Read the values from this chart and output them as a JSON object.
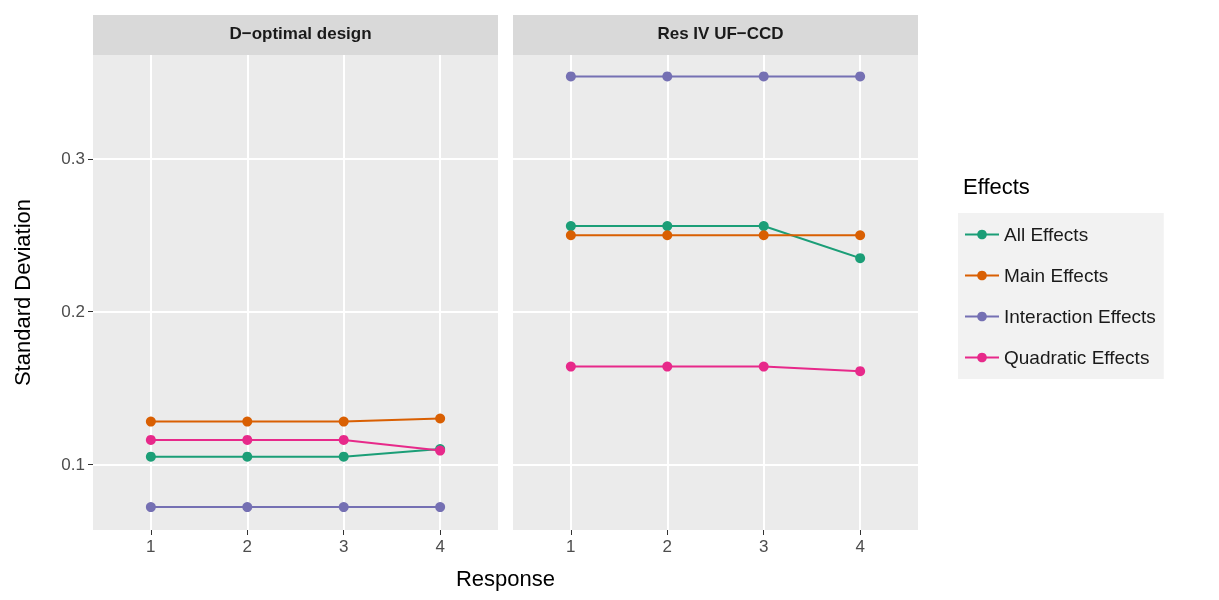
{
  "chart_data": [
    {
      "type": "line",
      "title": "D−optimal design",
      "xlabel": "Response",
      "ylabel": "Standard Deviation",
      "x": [
        1,
        2,
        3,
        4
      ],
      "xlim": [
        0.4,
        4.6
      ],
      "xticks": [
        1,
        2,
        3,
        4
      ],
      "ylim": [
        0.057,
        0.368
      ],
      "yticks": [
        0.1,
        0.2,
        0.3
      ],
      "grid": true,
      "marker": "circle",
      "series": [
        {
          "color": "#1b9e77",
          "values": [
            0.105,
            0.105,
            0.105,
            0.11
          ]
        },
        {
          "color": "#d95f02",
          "values": [
            0.128,
            0.128,
            0.128,
            0.13
          ]
        },
        {
          "color": "#7570b3",
          "values": [
            0.072,
            0.072,
            0.072,
            0.072
          ]
        },
        {
          "color": "#e7298a",
          "values": [
            0.116,
            0.116,
            0.116,
            0.109
          ]
        }
      ]
    },
    {
      "type": "line",
      "title": "Res IV UF−CCD",
      "x": [
        1,
        2,
        3,
        4
      ],
      "xlim": [
        0.4,
        4.6
      ],
      "xticks": [
        1,
        2,
        3,
        4
      ],
      "ylim": [
        0.057,
        0.368
      ],
      "yticks": [
        0.1,
        0.2,
        0.3
      ],
      "grid": true,
      "marker": "circle",
      "tick_labels": "x",
      "legend": "right",
      "legend_title": "Effects",
      "series": [
        {
          "name": "All Effects",
          "color": "#1b9e77",
          "values": [
            0.256,
            0.256,
            0.256,
            0.235
          ]
        },
        {
          "name": "Main Effects",
          "color": "#d95f02",
          "values": [
            0.25,
            0.25,
            0.25,
            0.25
          ]
        },
        {
          "name": "Interaction Effects",
          "color": "#7570b3",
          "values": [
            0.354,
            0.354,
            0.354,
            0.354
          ]
        },
        {
          "name": "Quadratic Effects",
          "color": "#e7298a",
          "values": [
            0.164,
            0.164,
            0.164,
            0.161
          ]
        }
      ]
    }
  ]
}
